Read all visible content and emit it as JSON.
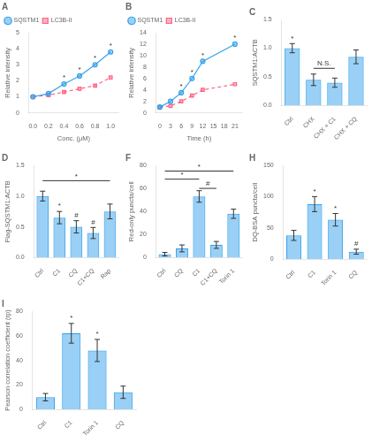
{
  "chart_data": [
    {
      "type": "line",
      "title": "A",
      "xlabel": "Conc. (μM)",
      "ylabel": "Relative intensity",
      "x": [
        0,
        0.2,
        0.4,
        0.6,
        0.8,
        1.0
      ],
      "series": [
        {
          "name": "SQSTM1",
          "values": [
            1.0,
            1.2,
            1.8,
            2.3,
            3.0,
            3.8
          ],
          "marker": "circle",
          "line_style": "solid"
        },
        {
          "name": "LC3B-II",
          "values": [
            1.0,
            1.1,
            1.3,
            1.5,
            1.7,
            2.2
          ],
          "marker": "square",
          "line_style": "dashed"
        }
      ],
      "xlim": [
        -0.05,
        1.1
      ],
      "xticks": [
        {
          "value": 0,
          "label": "0.0"
        },
        0.2,
        0.4,
        0.6,
        0.8,
        {
          "value": 1.0,
          "label": "1.0"
        }
      ],
      "ylim": [
        0,
        5
      ],
      "yticks": [
        0,
        1,
        2,
        3,
        4,
        5
      ],
      "legend": "upper left",
      "grid": false,
      "annotations": [
        {
          "text": "*",
          "x": 0.4,
          "y": 1.8
        },
        {
          "text": "*",
          "x": 0.6,
          "y": 2.3
        },
        {
          "text": "*",
          "x": 0.8,
          "y": 3.0
        },
        {
          "text": "*",
          "x": 1.0,
          "y": 3.8
        }
      ]
    },
    {
      "type": "line",
      "title": "B",
      "xlabel": "Time (h)",
      "ylabel": "Relative intensity",
      "x": [
        0,
        3,
        6,
        9,
        12,
        21
      ],
      "series": [
        {
          "name": "SQSTM1",
          "values": [
            1.0,
            2,
            3.5,
            6,
            9,
            12
          ],
          "marker": "circle",
          "line_style": "solid"
        },
        {
          "name": "LC3B-II",
          "values": [
            1.0,
            1.2,
            2,
            3,
            4,
            5
          ],
          "marker": "square",
          "line_style": "dashed"
        }
      ],
      "xlim": [
        -1,
        23
      ],
      "xticks": [
        0,
        3,
        6,
        9,
        12,
        15,
        18,
        21
      ],
      "ylim": [
        0,
        14
      ],
      "yticks": [
        0,
        2,
        4,
        6,
        8,
        10,
        12,
        14
      ],
      "legend": "upper left",
      "grid": false,
      "annotations": [
        {
          "text": "*",
          "x": 6,
          "y": 3.5
        },
        {
          "text": "*",
          "x": 9,
          "y": 6
        },
        {
          "text": "*",
          "x": 12,
          "y": 9
        },
        {
          "text": "*",
          "x": 21,
          "y": 12
        }
      ]
    },
    {
      "type": "bar",
      "title": "C",
      "ylabel": "SQSTM1:ACTB",
      "categories": [
        "Ctrl",
        "CHX",
        "CHX + C1",
        "CHX + CQ"
      ],
      "values": [
        1.0,
        0.45,
        0.4,
        0.85
      ],
      "errors": [
        0.08,
        0.1,
        0.08,
        0.12
      ],
      "ylim": [
        0,
        1.5
      ],
      "yticks": [
        {
          "value": 0,
          "label": "0.0"
        },
        0.5,
        {
          "value": 1.0,
          "label": "1.0"
        },
        1.5
      ],
      "grid": false,
      "annotations": [
        {
          "text": "N.S.",
          "from": "CHX",
          "to": "CHX + C1",
          "y": 0.65
        },
        {
          "text": "*",
          "category": "Ctrl"
        }
      ]
    },
    {
      "type": "bar",
      "title": "D",
      "ylabel": "Flag-SQSTM1:ACTB",
      "categories": [
        "Ctrl",
        "C1",
        "CQ",
        "C1+CQ",
        "Rap"
      ],
      "values": [
        1.0,
        0.65,
        0.5,
        0.4,
        0.75
      ],
      "errors": [
        0.08,
        0.1,
        0.1,
        0.09,
        0.12
      ],
      "ylim": [
        0,
        1.5
      ],
      "yticks": [
        {
          "value": 0,
          "label": "0.0"
        },
        0.5,
        {
          "value": 1.0,
          "label": "1.0"
        },
        1.5
      ],
      "grid": false,
      "annotations": [
        {
          "text": "*",
          "from": "Ctrl",
          "to": "Rap",
          "y": 1.25
        },
        {
          "text": "*",
          "category": "C1"
        },
        {
          "text": "#",
          "category": "CQ"
        },
        {
          "text": "#",
          "category": "C1+CQ"
        }
      ]
    },
    {
      "type": "bar",
      "title": "F",
      "ylabel": "Red-only puncta/cell",
      "categories": [
        "Ctrl",
        "CQ",
        "C1",
        "C1+CQ",
        "Torin 1"
      ],
      "values": [
        3,
        8,
        53,
        11,
        38
      ],
      "errors": [
        1.5,
        3,
        5,
        3,
        4
      ],
      "ylim": [
        0,
        80
      ],
      "yticks": [
        0,
        20,
        40,
        60,
        80
      ],
      "grid": false,
      "annotations": [
        {
          "text": "*",
          "from": "Ctrl",
          "to": "C1",
          "y": 68
        },
        {
          "text": "#",
          "from": "C1",
          "to": "C1+CQ",
          "y": 60
        },
        {
          "text": "*",
          "from": "Ctrl",
          "to": "Torin 1",
          "y": 75
        }
      ]
    },
    {
      "type": "bar",
      "title": "H",
      "ylabel": "DQ-BSA puncta/cell",
      "categories": [
        "Ctrl",
        "C1",
        "Torin 1",
        "CQ"
      ],
      "values": [
        38,
        88,
        63,
        12
      ],
      "errors": [
        8,
        12,
        10,
        4
      ],
      "ylim": [
        0,
        150
      ],
      "yticks": [
        0,
        50,
        100,
        150
      ],
      "grid": false,
      "annotations": [
        {
          "text": "*",
          "category": "C1"
        },
        {
          "text": "*",
          "category": "Torin 1"
        },
        {
          "text": "#",
          "category": "CQ"
        }
      ]
    },
    {
      "type": "bar",
      "title": "I",
      "ylabel": "Pearson correlation coefficient (rp)",
      "categories": [
        "Ctrl",
        "C1",
        "Torin 1",
        "CQ"
      ],
      "values": [
        10,
        62,
        48,
        14
      ],
      "errors": [
        3,
        8,
        9,
        5
      ],
      "ylim": [
        0,
        80
      ],
      "yticks": [
        0,
        20,
        40,
        60,
        80
      ],
      "grid": false,
      "annotations": [
        {
          "text": "*",
          "category": "C1"
        },
        {
          "text": "*",
          "category": "Torin 1"
        }
      ]
    }
  ]
}
